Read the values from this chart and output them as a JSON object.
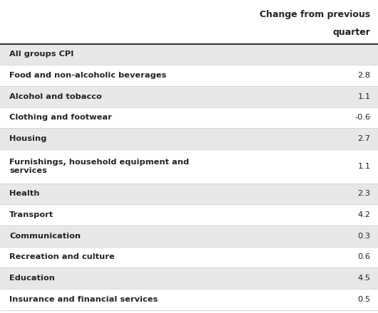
{
  "header_line1": "Change from previous",
  "header_line2": "quarter",
  "rows": [
    {
      "label": "All groups CPI",
      "value": null,
      "bold": true,
      "bg": "#e8e8e8"
    },
    {
      "label": "Food and non-alcoholic beverages",
      "value": "2.8",
      "bold": true,
      "bg": "#ffffff"
    },
    {
      "label": "Alcohol and tobacco",
      "value": "1.1",
      "bold": true,
      "bg": "#e8e8e8"
    },
    {
      "label": "Clothing and footwear",
      "value": "-0.6",
      "bold": true,
      "bg": "#ffffff"
    },
    {
      "label": "Housing",
      "value": "2.7",
      "bold": true,
      "bg": "#e8e8e8"
    },
    {
      "label": "Furnishings, household equipment and\nservices",
      "value": "1.1",
      "bold": true,
      "bg": "#ffffff"
    },
    {
      "label": "Health",
      "value": "2.3",
      "bold": true,
      "bg": "#e8e8e8"
    },
    {
      "label": "Transport",
      "value": "4.2",
      "bold": true,
      "bg": "#ffffff"
    },
    {
      "label": "Communication",
      "value": "0.3",
      "bold": true,
      "bg": "#e8e8e8"
    },
    {
      "label": "Recreation and culture",
      "value": "0.6",
      "bold": true,
      "bg": "#ffffff"
    },
    {
      "label": "Education",
      "value": "4.5",
      "bold": true,
      "bg": "#e8e8e8"
    },
    {
      "label": "Insurance and financial services",
      "value": "0.5",
      "bold": true,
      "bg": "#ffffff"
    }
  ],
  "header_bg": "#ffffff",
  "header_separator_color": "#333333",
  "row_separator_color": "#cccccc",
  "text_color": "#222222",
  "value_color": "#222222",
  "fig_bg": "#ffffff"
}
